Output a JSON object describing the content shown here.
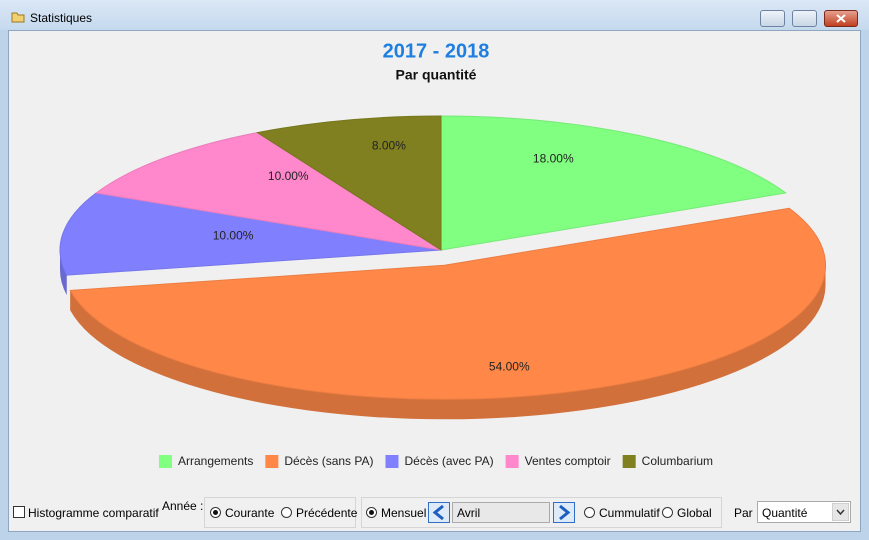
{
  "window": {
    "title": "Statistiques"
  },
  "chart_data": {
    "type": "pie",
    "title": "2017 - 2018",
    "subtitle": "Par quantité",
    "categories": [
      "Arrangements",
      "Décès (sans PA)",
      "Décès (avec PA)",
      "Ventes comptoir",
      "Columbarium"
    ],
    "values": [
      18,
      54,
      10,
      10,
      8
    ],
    "value_labels": [
      "18.00%",
      "54.00%",
      "10.00%",
      "10.00%",
      "8.00%"
    ],
    "colors": [
      "#80ff80",
      "#ff8848",
      "#8080ff",
      "#ff88cc",
      "#808020"
    ],
    "exploded": [
      false,
      true,
      false,
      false,
      false
    ],
    "legend": "bottom"
  },
  "controls": {
    "histogram_checkbox": "Histogramme comparatif",
    "year_label": "Année :",
    "year_options": [
      "Courante",
      "Précédente"
    ],
    "period_options": [
      "Mensuel",
      "Cummulatif",
      "Global"
    ],
    "month": "Avril",
    "by_label": "Par :",
    "by_value": "Quantité"
  }
}
